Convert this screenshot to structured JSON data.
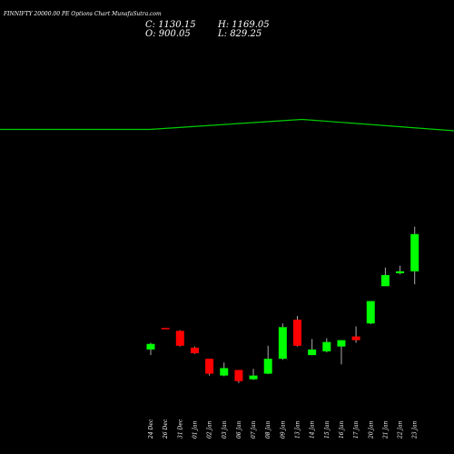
{
  "header": {
    "title": "FINNIFTY 20000.00 PE Options Chart MunafaSutra.com",
    "close": "C: 1130.15",
    "high": "H: 1169.05",
    "open": "O: 900.05",
    "low": "L: 829.25"
  },
  "chart_data": {
    "type": "candlestick",
    "title": "FINNIFTY 20000.00 PE Options Chart MunafaSutra.com",
    "colors": {
      "up": "#00ff00",
      "down": "#ff0000",
      "line": "#00cc00",
      "background": "#000000"
    },
    "x": [
      "24 Dec",
      "26 Dec",
      "31 Dec",
      "01 Jan",
      "02 Jan",
      "03 Jan",
      "06 Jan",
      "07 Jan",
      "08 Jan",
      "09 Jan",
      "13 Jan",
      "14 Jan",
      "15 Jan",
      "16 Jan",
      "17 Jan",
      "20 Jan",
      "21 Jan",
      "22 Jan",
      "23 Jan"
    ],
    "candles": [
      {
        "o": 110,
        "c": 125,
        "h": 128,
        "l": 95
      },
      {
        "o": 168,
        "c": 165,
        "h": 168,
        "l": 165
      },
      {
        "o": 160,
        "c": 120,
        "h": 162,
        "l": 118
      },
      {
        "o": 115,
        "c": 100,
        "h": 118,
        "l": 98
      },
      {
        "o": 85,
        "c": 45,
        "h": 85,
        "l": 40
      },
      {
        "o": 40,
        "c": 60,
        "h": 75,
        "l": 38
      },
      {
        "o": 55,
        "c": 25,
        "h": 55,
        "l": 20
      },
      {
        "o": 30,
        "c": 40,
        "h": 58,
        "l": 28
      },
      {
        "o": 45,
        "c": 85,
        "h": 120,
        "l": 44
      },
      {
        "o": 85,
        "c": 170,
        "h": 180,
        "l": 82
      },
      {
        "o": 190,
        "c": 120,
        "h": 200,
        "l": 118
      },
      {
        "o": 95,
        "c": 110,
        "h": 138,
        "l": 94
      },
      {
        "o": 105,
        "c": 130,
        "h": 140,
        "l": 102
      },
      {
        "o": 118,
        "c": 135,
        "h": 135,
        "l": 70
      },
      {
        "o": 145,
        "c": 135,
        "h": 172,
        "l": 128
      },
      {
        "o": 180,
        "c": 240,
        "h": 240,
        "l": 178
      },
      {
        "o": 280,
        "c": 310,
        "h": 330,
        "l": 280
      },
      {
        "o": 315,
        "c": 320,
        "h": 335,
        "l": 312
      },
      {
        "o": 320,
        "c": 420,
        "h": 440,
        "l": 285
      }
    ],
    "line": [
      {
        "x": 0,
        "y": 0.285
      },
      {
        "x": 0.33,
        "y": 0.285
      },
      {
        "x": 0.665,
        "y": 0.263
      },
      {
        "x": 1.0,
        "y": 0.288
      }
    ]
  }
}
